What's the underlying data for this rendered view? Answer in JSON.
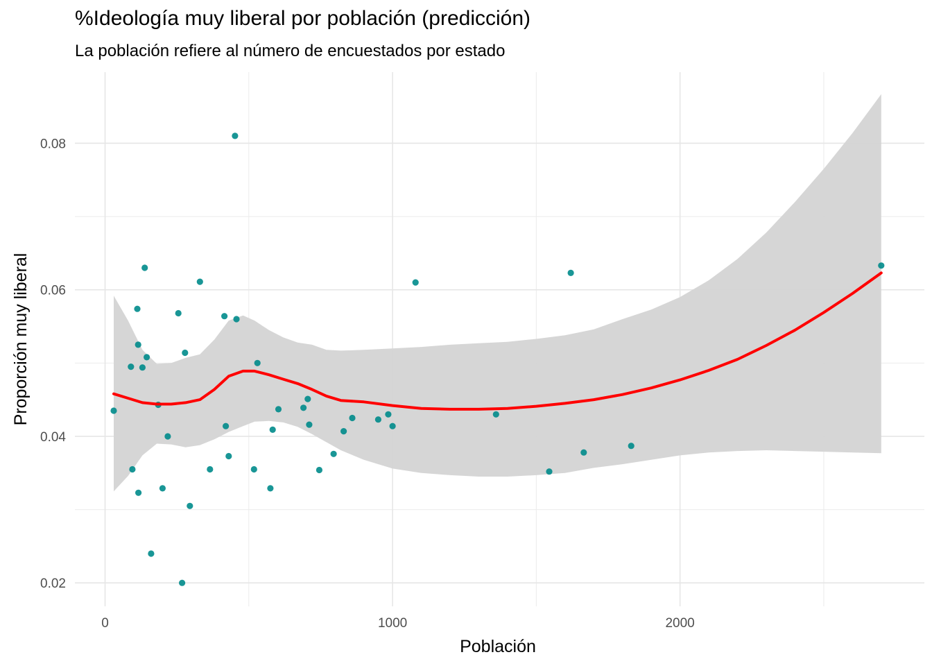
{
  "chart_data": {
    "type": "scatter",
    "title": "%Ideología muy liberal por población (predicción)",
    "subtitle": "La población refiere al número de encuestados por estado",
    "xlabel": "Población",
    "ylabel": "Proporción muy liberal",
    "xlim": [
      -105,
      2850
    ],
    "ylim": [
      0.0168,
      0.0897
    ],
    "x_ticks": [
      0,
      1000,
      2000
    ],
    "x_tick_labels": [
      "0",
      "1000",
      "2000"
    ],
    "x_minor_ticks": [
      500,
      1500,
      2500
    ],
    "y_ticks": [
      0.02,
      0.04,
      0.06,
      0.08
    ],
    "y_tick_labels": [
      "0.02",
      "0.04",
      "0.06",
      "0.08"
    ],
    "y_minor_ticks": [
      0.03,
      0.05,
      0.07
    ],
    "grid": true,
    "points": {
      "color": "#008b8b",
      "x": [
        30,
        90,
        95,
        112,
        115,
        116,
        130,
        138,
        145,
        160,
        185,
        200,
        218,
        255,
        268,
        278,
        295,
        330,
        365,
        415,
        420,
        430,
        452,
        457,
        518,
        530,
        575,
        583,
        603,
        690,
        705,
        710,
        745,
        795,
        830,
        860,
        950,
        985,
        1000,
        1080,
        1360,
        1545,
        1620,
        1665,
        1830,
        2700
      ],
      "y": [
        0.0435,
        0.0495,
        0.0355,
        0.0574,
        0.0525,
        0.0323,
        0.0494,
        0.063,
        0.0508,
        0.024,
        0.0443,
        0.0329,
        0.04,
        0.0568,
        0.02,
        0.0514,
        0.0305,
        0.0611,
        0.0355,
        0.0564,
        0.0414,
        0.0373,
        0.081,
        0.056,
        0.0355,
        0.05,
        0.0329,
        0.0409,
        0.0437,
        0.0439,
        0.0451,
        0.0416,
        0.0354,
        0.0376,
        0.0407,
        0.0425,
        0.0423,
        0.043,
        0.0414,
        0.061,
        0.043,
        0.0352,
        0.0623,
        0.0378,
        0.0387,
        0.0633
      ]
    },
    "smooth": {
      "color": "#ff0000",
      "band_color": "#d4d4d4",
      "x": [
        30,
        80,
        130,
        180,
        230,
        280,
        330,
        380,
        430,
        480,
        520,
        570,
        620,
        670,
        720,
        770,
        820,
        900,
        1000,
        1100,
        1200,
        1300,
        1400,
        1500,
        1600,
        1700,
        1800,
        1900,
        2000,
        2100,
        2200,
        2300,
        2400,
        2500,
        2600,
        2700
      ],
      "fit": [
        0.0458,
        0.0452,
        0.0446,
        0.0444,
        0.0444,
        0.0446,
        0.045,
        0.0464,
        0.0482,
        0.0489,
        0.0489,
        0.0484,
        0.0478,
        0.0472,
        0.0464,
        0.0455,
        0.0449,
        0.0447,
        0.0442,
        0.0438,
        0.0437,
        0.0437,
        0.0438,
        0.0441,
        0.0445,
        0.045,
        0.0457,
        0.0466,
        0.0477,
        0.049,
        0.0505,
        0.0524,
        0.0545,
        0.0569,
        0.0595,
        0.0623
      ],
      "upper": [
        0.0592,
        0.0558,
        0.0518,
        0.0499,
        0.05,
        0.0507,
        0.0512,
        0.0532,
        0.0558,
        0.0565,
        0.0558,
        0.0545,
        0.0535,
        0.0528,
        0.0525,
        0.0518,
        0.0517,
        0.0518,
        0.052,
        0.0522,
        0.0525,
        0.0527,
        0.0529,
        0.0533,
        0.0538,
        0.0546,
        0.056,
        0.0573,
        0.059,
        0.0613,
        0.0642,
        0.0678,
        0.072,
        0.0765,
        0.0814,
        0.0867
      ],
      "lower": [
        0.0325,
        0.0346,
        0.0374,
        0.039,
        0.0389,
        0.0385,
        0.0388,
        0.0396,
        0.0406,
        0.0414,
        0.042,
        0.0421,
        0.0419,
        0.0413,
        0.0403,
        0.0392,
        0.0381,
        0.0368,
        0.0356,
        0.035,
        0.0347,
        0.0345,
        0.0345,
        0.0347,
        0.035,
        0.0357,
        0.0362,
        0.0368,
        0.0374,
        0.0378,
        0.038,
        0.0381,
        0.038,
        0.0379,
        0.0378,
        0.0377
      ]
    }
  }
}
